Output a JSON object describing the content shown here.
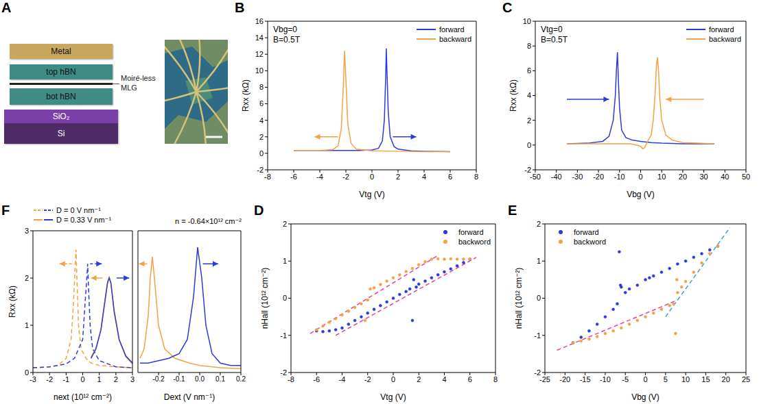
{
  "diagram": {
    "panel": "A",
    "layers": [
      {
        "text": "Metal",
        "color": "#c8a85e"
      },
      {
        "text": "top hBN",
        "color": "#3f8c86"
      },
      {
        "text": "Moiré-less MLG",
        "color": "#222222",
        "thin": true
      },
      {
        "text": "bot hBN",
        "color": "#3f8c86"
      },
      {
        "text": "SiO₂",
        "color": "#7b3fa8"
      },
      {
        "text": "Si",
        "color": "#4e2b66"
      }
    ]
  },
  "chart_data": [
    {
      "panel": "B",
      "type": "line",
      "xlabel": "Vtg (V)",
      "ylabel": "Rxx (kΩ)",
      "xlim": [
        -8,
        8
      ],
      "xticks": [
        -8,
        -6,
        -4,
        -2,
        0,
        2,
        4,
        6,
        8
      ],
      "ylim": [
        -2,
        16
      ],
      "yticks": [
        -2,
        0,
        2,
        4,
        6,
        8,
        10,
        12,
        14,
        16
      ],
      "annotations": [
        "Vbg=0",
        "B=0.5T"
      ],
      "legend": "upper right",
      "series": [
        {
          "name": "forward",
          "color": "#2b3bdb",
          "x": [
            -6,
            -4,
            -2,
            -1,
            0,
            0.5,
            0.8,
            0.95,
            1.05,
            1.1,
            1.15,
            1.25,
            1.4,
            1.7,
            2,
            3,
            4,
            6
          ],
          "values": [
            0.35,
            0.35,
            0.35,
            0.35,
            0.4,
            0.6,
            1.5,
            4,
            9,
            12.7,
            10,
            5,
            2,
            0.8,
            0.5,
            0.3,
            0.25,
            0.2
          ]
        },
        {
          "name": "backward",
          "color": "#f5a142",
          "x": [
            -6,
            -4,
            -3,
            -2.6,
            -2.35,
            -2.2,
            -2.1,
            -2.0,
            -1.85,
            -1.6,
            -1.2,
            0,
            2,
            4,
            6
          ],
          "values": [
            0.35,
            0.35,
            0.45,
            0.9,
            3,
            8,
            12.4,
            9,
            3.5,
            1.2,
            0.5,
            0.3,
            0.25,
            0.2,
            0.2
          ]
        }
      ],
      "arrows": [
        {
          "from": [
            1.6,
            2
          ],
          "to": [
            3.4,
            2
          ],
          "color": "#2b3bdb"
        },
        {
          "from": [
            -2.6,
            2
          ],
          "to": [
            -4.4,
            2
          ],
          "color": "#f5a142"
        }
      ]
    },
    {
      "panel": "C",
      "type": "line",
      "xlabel": "Vbg (V)",
      "ylabel": "Rxx (kΩ)",
      "xlim": [
        -50,
        50
      ],
      "xticks": [
        -50,
        -40,
        -30,
        -20,
        -10,
        0,
        10,
        20,
        30,
        40,
        50
      ],
      "ylim": [
        -2,
        10
      ],
      "yticks": [
        -2,
        0,
        2,
        4,
        6,
        8,
        10
      ],
      "annotations": [
        "Vtg=0",
        "B=0.5T"
      ],
      "legend": "upper right",
      "series": [
        {
          "name": "forward",
          "color": "#2b3bdb",
          "x": [
            -35,
            -25,
            -18,
            -15,
            -13,
            -12,
            -11.5,
            -11,
            -10.5,
            -10,
            -9,
            -7,
            -4,
            0,
            5,
            10,
            20,
            35
          ],
          "values": [
            0.1,
            0.15,
            0.3,
            0.7,
            2,
            4,
            6,
            7.5,
            5,
            3,
            1.2,
            0.6,
            0.4,
            0.3,
            0.2,
            0.15,
            0.1,
            0.1
          ]
        },
        {
          "name": "backward",
          "color": "#f5a142",
          "x": [
            -35,
            -20,
            -10,
            -5,
            -2,
            0,
            1,
            2,
            3,
            5,
            6,
            7,
            7.5,
            8,
            8.5,
            9,
            10,
            12,
            15,
            20,
            35
          ],
          "values": [
            0.1,
            0.1,
            0.1,
            0.1,
            0,
            -0.1,
            -0.3,
            -0.2,
            0.2,
            0.8,
            2,
            4.5,
            6.5,
            7.1,
            6,
            4,
            2,
            0.8,
            0.4,
            0.2,
            0.1
          ]
        }
      ],
      "arrows": [
        {
          "from": [
            -35,
            3.7
          ],
          "to": [
            -15,
            3.7
          ],
          "color": "#2b3bdb"
        },
        {
          "from": [
            30,
            3.7
          ],
          "to": [
            12,
            3.7
          ],
          "color": "#f5a142"
        }
      ]
    },
    {
      "panel": "D",
      "type": "scatter",
      "xlabel": "Vtg (V)",
      "ylabel": "nHall (10¹² cm⁻²)",
      "xlim": [
        -8,
        8
      ],
      "xticks": [
        -8,
        -6,
        -4,
        -2,
        0,
        2,
        4,
        6,
        8
      ],
      "ylim": [
        -2,
        2
      ],
      "yticks": [
        -2,
        -1,
        0,
        1,
        2
      ],
      "legend": "upper right",
      "series": [
        {
          "name": "forward",
          "color": "#2b3bdb",
          "marker": "circle",
          "x": [
            -6,
            -5.5,
            -5,
            -4.5,
            -4,
            -3.5,
            -3,
            -2.5,
            -2,
            -1.5,
            -1,
            -0.5,
            0,
            0.5,
            1,
            1.3,
            1.5,
            1.6,
            1.8,
            2,
            2.5,
            3,
            3.5,
            4,
            4.5,
            5,
            5.5,
            6
          ],
          "values": [
            -0.88,
            -0.9,
            -0.88,
            -0.85,
            -0.8,
            -0.7,
            -0.6,
            -0.5,
            -0.4,
            -0.3,
            -0.2,
            -0.1,
            0,
            0.1,
            0.18,
            0.25,
            -0.6,
            0.5,
            0.3,
            0.38,
            0.46,
            0.55,
            0.63,
            0.71,
            0.79,
            0.87,
            0.96,
            1.05
          ]
        },
        {
          "name": "backword",
          "color": "#f5a142",
          "marker": "circle",
          "x": [
            6,
            5.5,
            5,
            4.5,
            4,
            3.5,
            3,
            2.5,
            2,
            1.5,
            1,
            0.5,
            0,
            -0.5,
            -1,
            -1.5,
            -1.8,
            -2,
            -2.2,
            -2.5,
            -3,
            -3.5,
            -4,
            -4.5,
            -5,
            -5.5,
            -6
          ],
          "values": [
            1.05,
            1.05,
            1.05,
            1.06,
            1.05,
            1.06,
            1.05,
            0.98,
            0.9,
            0.8,
            0.72,
            0.63,
            0.55,
            0.46,
            0.37,
            0.28,
            0.25,
            -0.05,
            -0.6,
            -0.15,
            -0.25,
            -0.35,
            -0.45,
            -0.55,
            -0.65,
            -0.75,
            -0.85
          ]
        },
        {
          "type": "line",
          "line_style": "dashed",
          "color": "#e0449c",
          "x": [
            -6.5,
            3.5
          ],
          "values": [
            -0.95,
            1.15
          ]
        },
        {
          "type": "line",
          "line_style": "dashed",
          "color": "#e0449c",
          "x": [
            -4.5,
            6.5
          ],
          "values": [
            -1,
            1.1
          ]
        }
      ]
    },
    {
      "panel": "E",
      "type": "scatter",
      "xlabel": "Vbg (V)",
      "ylabel": "nHall (10¹² cm⁻²)",
      "xlim": [
        -25,
        25
      ],
      "xticks": [
        -25,
        -20,
        -15,
        -10,
        -5,
        0,
        5,
        10,
        15,
        20,
        25
      ],
      "ylim": [
        -2,
        2
      ],
      "yticks": [
        -2,
        -1,
        0,
        1,
        2
      ],
      "legend": "upper left",
      "series": [
        {
          "name": "forward",
          "color": "#2b3bdb",
          "marker": "circle",
          "x": [
            -18,
            -16,
            -14,
            -12,
            -10,
            -8,
            -7,
            -6.5,
            -6.2,
            -6,
            -5,
            -4,
            -2,
            0,
            1,
            2,
            4,
            6,
            8,
            10,
            12,
            14,
            16,
            18
          ],
          "values": [
            -1.2,
            -1.05,
            -0.88,
            -0.7,
            -0.5,
            -0.3,
            -0.15,
            1.25,
            0.35,
            0.3,
            0.15,
            0.25,
            0.35,
            0.5,
            0.55,
            0.6,
            0.7,
            0.8,
            0.92,
            1.0,
            1.1,
            1.2,
            1.3,
            1.4
          ]
        },
        {
          "name": "backword",
          "color": "#f5a142",
          "marker": "circle",
          "x": [
            18,
            16,
            14,
            12,
            10,
            9,
            8,
            7.8,
            7.5,
            7,
            6,
            4,
            2,
            0,
            -2,
            -4,
            -6,
            -8,
            -10,
            -12,
            -14,
            -16,
            -18
          ],
          "values": [
            1.4,
            1.2,
            0.95,
            0.7,
            0.45,
            0.3,
            0.15,
            0.5,
            -0.95,
            -0.15,
            -0.2,
            -0.3,
            -0.4,
            -0.5,
            -0.6,
            -0.7,
            -0.8,
            -0.88,
            -0.95,
            -1.03,
            -1.1,
            -1.15,
            -1.2
          ]
        },
        {
          "type": "line",
          "line_style": "dashed",
          "color": "#e0449c",
          "x": [
            -22,
            8
          ],
          "values": [
            -1.4,
            -0.05
          ]
        },
        {
          "type": "line",
          "line_style": "dashed",
          "color": "#3aa3d8",
          "x": [
            5,
            21
          ],
          "values": [
            -0.5,
            1.9
          ]
        }
      ]
    },
    {
      "panel": "F",
      "type": "line",
      "xlabel": "next (10¹² cm⁻²)",
      "ylabel": "Rxx (kΩ)",
      "xlim": [
        -3,
        3
      ],
      "xticks": [
        -3,
        -2,
        -1,
        0,
        1,
        2,
        3
      ],
      "ylim": [
        0,
        3
      ],
      "yticks": [
        0,
        1,
        2,
        3
      ],
      "legend": "top",
      "series": [
        {
          "name": "D = 0 V nm⁻¹",
          "color": "#f5a142",
          "line_style": "dashed",
          "x": [
            -3,
            -2,
            -1.5,
            -1,
            -0.7,
            -0.55,
            -0.45,
            -0.4,
            -0.35,
            -0.25,
            -0.1,
            0.2,
            0.5,
            1,
            2,
            3
          ],
          "values": [
            0.1,
            0.12,
            0.15,
            0.3,
            0.7,
            1.5,
            2.3,
            2.6,
            2.0,
            1.0,
            0.5,
            0.3,
            0.2,
            0.15,
            0.12,
            0.1
          ]
        },
        {
          "name": "D = 0 V nm⁻¹",
          "color": "#2b3bdb",
          "line_style": "dashed",
          "x": [
            -3,
            -2,
            -1,
            -0.5,
            0,
            0.15,
            0.25,
            0.3,
            0.35,
            0.45,
            0.6,
            1,
            2,
            3
          ],
          "values": [
            0.1,
            0.12,
            0.18,
            0.3,
            0.7,
            1.5,
            2.0,
            2.3,
            1.8,
            1.0,
            0.5,
            0.25,
            0.12,
            0.1
          ]
        },
        {
          "name": "D = 0.33 V nm⁻¹",
          "color": "#f5a142",
          "line_style": "solid",
          "x": [
            0.5,
            0.8,
            1.1,
            1.3,
            1.5,
            1.6,
            1.7,
            1.9,
            2.2,
            2.6,
            3
          ],
          "values": [
            0.32,
            0.52,
            0.92,
            1.45,
            1.92,
            2.02,
            1.88,
            1.25,
            0.68,
            0.33,
            0.18
          ]
        },
        {
          "name": "D = 0.33 V nm⁻¹",
          "color": "#2b3bdb",
          "line_style": "solid",
          "x": [
            0.5,
            0.8,
            1.1,
            1.3,
            1.5,
            1.6,
            1.7,
            1.9,
            2.2,
            2.6,
            3
          ],
          "values": [
            0.3,
            0.5,
            0.9,
            1.4,
            1.9,
            2.0,
            1.9,
            1.3,
            0.7,
            0.35,
            0.2
          ]
        }
      ],
      "arrows": [
        {
          "from": [
            -0.65,
            2.3
          ],
          "to": [
            -1.4,
            2.3
          ],
          "color": "#f5a142",
          "line_style": "dashed"
        },
        {
          "from": [
            0.45,
            2.3
          ],
          "to": [
            1.15,
            2.3
          ],
          "color": "#2b3bdb",
          "line_style": "dashed"
        },
        {
          "from": [
            1.2,
            2
          ],
          "to": [
            0.5,
            2
          ],
          "color": "#f5a142"
        },
        {
          "from": [
            2.05,
            2
          ],
          "to": [
            2.8,
            2
          ],
          "color": "#2b3bdb"
        }
      ]
    },
    {
      "type": "line",
      "xlabel": "Dext (V nm⁻¹)",
      "xlim": [
        -0.3,
        0.2
      ],
      "xticks": [
        -0.2,
        -0.1,
        {
          "value": 0,
          "label": "0.0"
        },
        0.1,
        0.2
      ],
      "ylim": [
        0,
        3
      ],
      "tick_labels": "x",
      "annotations": [
        "n = -0.64×10¹² cm⁻²"
      ],
      "series": [
        {
          "color": "#f5a142",
          "x": [
            -0.29,
            -0.27,
            -0.25,
            -0.24,
            -0.23,
            -0.22,
            -0.2,
            -0.17,
            -0.12,
            -0.05,
            0,
            0.1,
            0.2
          ],
          "values": [
            0.3,
            0.5,
            1.2,
            2.0,
            2.45,
            2.0,
            1.0,
            0.5,
            0.3,
            0.2,
            0.15,
            0.1,
            0.08
          ]
        },
        {
          "color": "#2b3bdb",
          "x": [
            -0.29,
            -0.25,
            -0.2,
            -0.15,
            -0.1,
            -0.06,
            -0.03,
            -0.01,
            0.01,
            0.03,
            0.06,
            0.1,
            0.15,
            0.2
          ],
          "values": [
            0.2,
            0.2,
            0.25,
            0.3,
            0.4,
            0.7,
            1.6,
            2.65,
            2.0,
            1.0,
            0.4,
            0.2,
            0.15,
            0.15
          ]
        }
      ],
      "arrows": [
        {
          "from": [
            -0.255,
            2.3
          ],
          "to": [
            -0.295,
            2.3
          ],
          "color": "#f5a142"
        },
        {
          "from": [
            0.015,
            2.3
          ],
          "to": [
            0.09,
            2.3
          ],
          "color": "#2b3bdb"
        }
      ]
    }
  ]
}
